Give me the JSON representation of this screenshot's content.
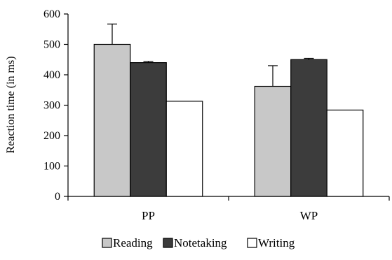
{
  "chart_data": {
    "type": "bar",
    "categories": [
      "PP",
      "WP"
    ],
    "ylabel": "Reaction time (in ms)",
    "ylim": [
      0,
      600
    ],
    "yticks": [
      0,
      100,
      200,
      300,
      400,
      500,
      600
    ],
    "grid": false,
    "legend": "bottom",
    "series": [
      {
        "name": "Reading",
        "values": [
          500,
          362
        ],
        "error": [
          67,
          68
        ],
        "color": "#c8c8c8"
      },
      {
        "name": "Notetaking",
        "values": [
          440,
          450
        ],
        "error": [
          4,
          4
        ],
        "color": "#3c3c3c"
      },
      {
        "name": "Writing",
        "values": [
          313,
          284
        ],
        "error": [
          0,
          0
        ],
        "color": "#ffffff"
      }
    ]
  }
}
